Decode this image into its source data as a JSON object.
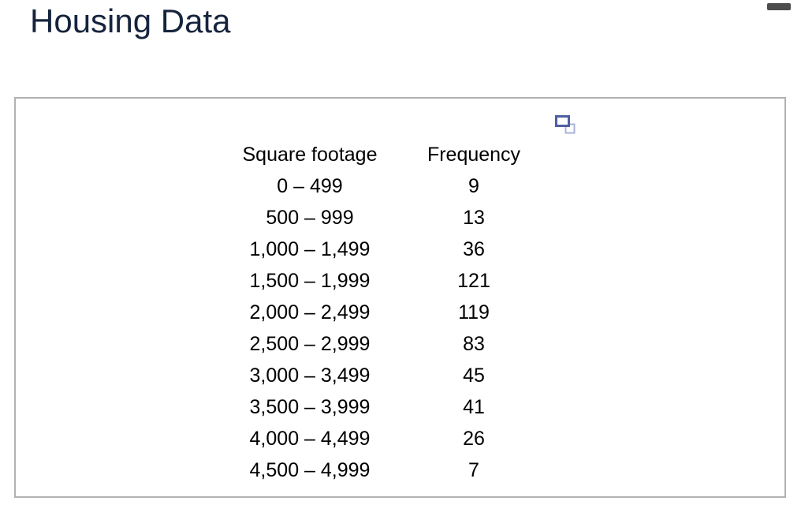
{
  "window": {
    "handle_color": "#4d4d4d"
  },
  "header": {
    "title": "Housing Data",
    "title_color": "#16243d"
  },
  "panel": {
    "border_color": "#b2b2b2",
    "popout_icon": {
      "name": "popout-window-icon",
      "front_color": "#4e5fa2",
      "back_color": "#a9b3d7"
    }
  },
  "table": {
    "headers": [
      "Square footage",
      "Frequency"
    ],
    "rows": [
      {
        "square_footage": "0 – 499",
        "frequency": "9"
      },
      {
        "square_footage": "500 – 999",
        "frequency": "13"
      },
      {
        "square_footage": "1,000 – 1,499",
        "frequency": "36"
      },
      {
        "square_footage": "1,500 – 1,999",
        "frequency": "121"
      },
      {
        "square_footage": "2,000 – 2,499",
        "frequency": "119"
      },
      {
        "square_footage": "2,500 – 2,999",
        "frequency": "83"
      },
      {
        "square_footage": "3,000 – 3,499",
        "frequency": "45"
      },
      {
        "square_footage": "3,500 – 3,999",
        "frequency": "41"
      },
      {
        "square_footage": "4,000 – 4,499",
        "frequency": "26"
      },
      {
        "square_footage": "4,500 – 4,999",
        "frequency": "7"
      }
    ]
  }
}
